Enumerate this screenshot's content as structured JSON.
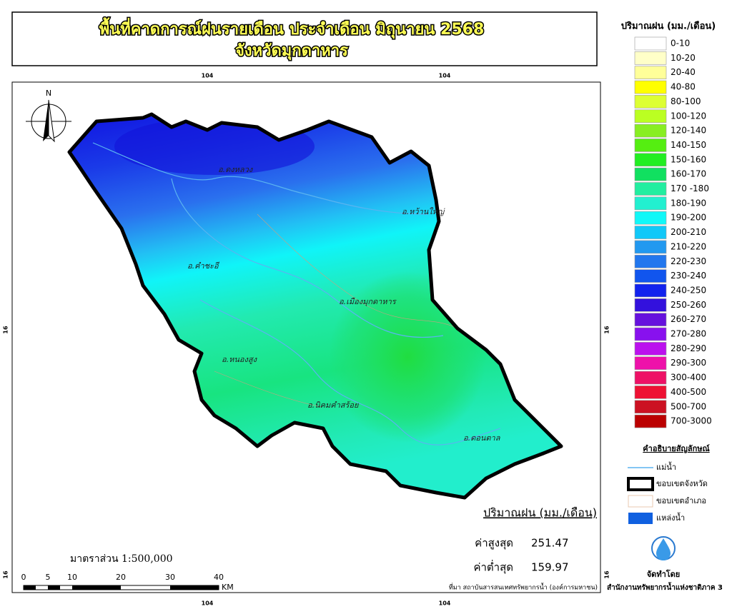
{
  "header": {
    "title": "พื้นที่คาดการณ์ฝนรายเดือน ประจำเดือน มิถุนายน 2568",
    "subtitle": "จังหวัดมุกดาหาร"
  },
  "map": {
    "north": "N",
    "coordinates": {
      "top": [
        "104",
        "104"
      ],
      "bottom": [
        "104",
        "104"
      ],
      "left": [
        "16",
        "16"
      ],
      "right": [
        "16",
        "16"
      ]
    },
    "districts": [
      "อ.ดงหลวง",
      "อ.หว้านใหญ่",
      "อ.คำชะอี",
      "อ.เมืองมุกดาหาร",
      "อ.หนองสูง",
      "อ.นิคมคำสร้อย",
      "อ.ดอนตาล"
    ],
    "scale": {
      "label": "มาตราส่วน 1:500,000",
      "ticks": [
        "0",
        "5",
        "10",
        "20",
        "30",
        "40"
      ],
      "unit": "KM"
    },
    "stats": {
      "title": "ปริมาณฝน (มม./เดือน)",
      "max_label": "ค่าสูงสุด",
      "max": "251.47",
      "min_label": "ค่าต่ำสุด",
      "min": "159.97"
    },
    "source": "ที่มา  สถาบันสารสนเทศทรัพยากรน้ำ (องค์การมหาชน)"
  },
  "legend": {
    "title": "ปริมาณฝน (มม./เดือน)",
    "items": [
      {
        "label": "0-10",
        "color": "#ffffff"
      },
      {
        "label": "10-20",
        "color": "#ffffc8"
      },
      {
        "label": "20-40",
        "color": "#ffff99"
      },
      {
        "label": "40-80",
        "color": "#ffff00"
      },
      {
        "label": "80-100",
        "color": "#ddff33"
      },
      {
        "label": "100-120",
        "color": "#bbff22"
      },
      {
        "label": "120-140",
        "color": "#88ee22"
      },
      {
        "label": "140-150",
        "color": "#55ee11"
      },
      {
        "label": "150-160",
        "color": "#22ee22"
      },
      {
        "label": "160-170",
        "color": "#11e060"
      },
      {
        "label": "170 -180",
        "color": "#22eea0"
      },
      {
        "label": "180-190",
        "color": "#22f0d0"
      },
      {
        "label": "190-200",
        "color": "#11f8f8"
      },
      {
        "label": "200-210",
        "color": "#11c8f8"
      },
      {
        "label": "210-220",
        "color": "#2299f0"
      },
      {
        "label": "220-230",
        "color": "#2277ee"
      },
      {
        "label": "230-240",
        "color": "#1155ee"
      },
      {
        "label": "240-250",
        "color": "#1122ee"
      },
      {
        "label": "250-260",
        "color": "#3311dd"
      },
      {
        "label": "260-270",
        "color": "#6611dd"
      },
      {
        "label": "270-280",
        "color": "#8811ee"
      },
      {
        "label": "280-290",
        "color": "#bb11ee"
      },
      {
        "label": "290-300",
        "color": "#ee11aa"
      },
      {
        "label": "300-400",
        "color": "#ee1166"
      },
      {
        "label": "400-500",
        "color": "#ee1133"
      },
      {
        "label": "500-700",
        "color": "#cc1122"
      },
      {
        "label": "700-3000",
        "color": "#bb0000"
      }
    ],
    "symbols_title": "คำอธิบายสัญลักษณ์",
    "symbols": [
      "แม่น้ำ",
      "ขอบเขตจังหวัด",
      "ขอบเขตอำเภอ",
      "แหล่งน้ำ"
    ],
    "credit_label": "จัดทำโดย",
    "credit": "สำนักงานทรัพยากรน้ำแห่งชาติภาค 3"
  }
}
